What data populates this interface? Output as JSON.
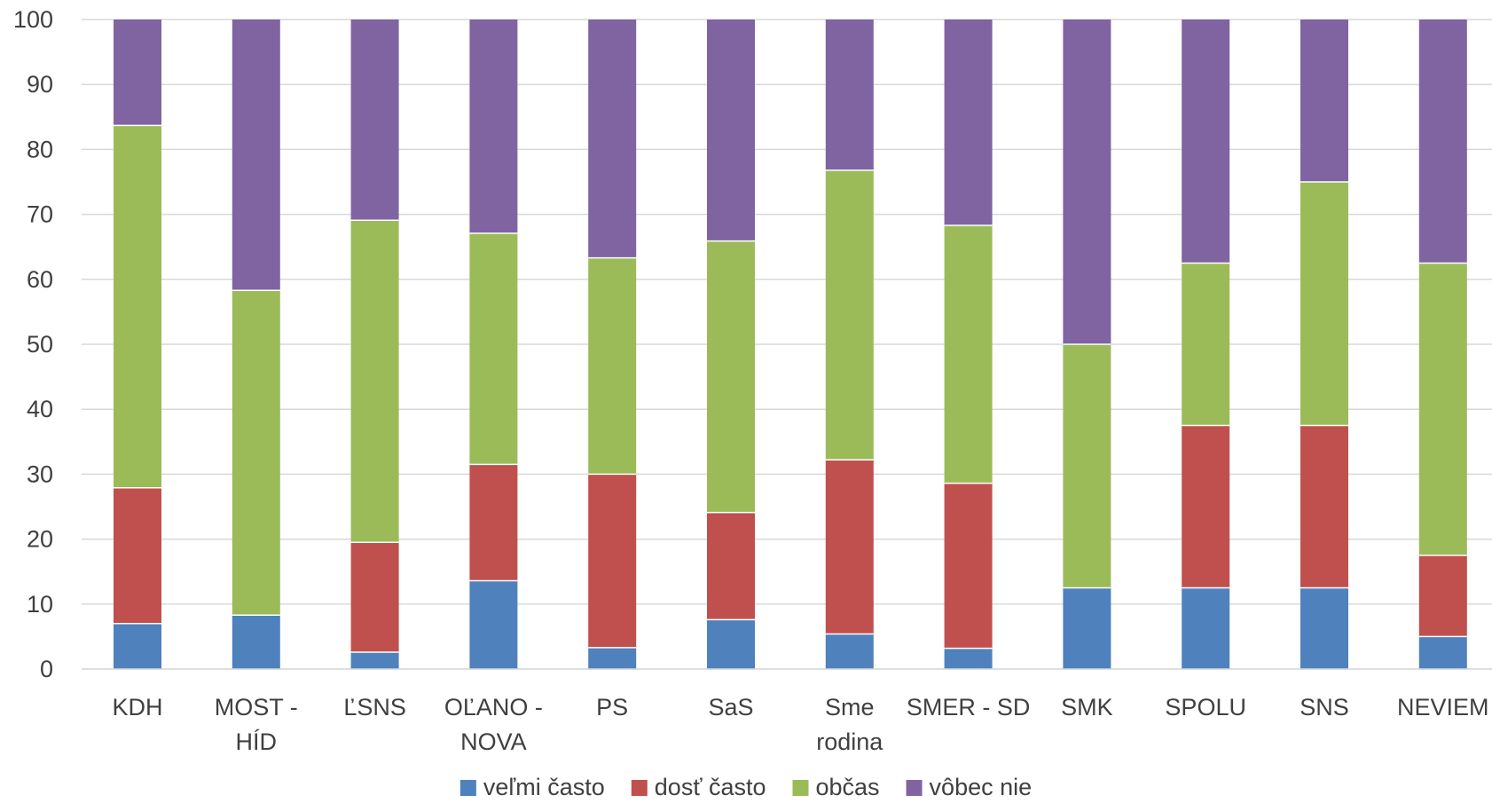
{
  "chart_data": {
    "type": "bar",
    "stacked": true,
    "title": "",
    "xlabel": "",
    "ylabel": "",
    "ylim": [
      0,
      100
    ],
    "yticks": [
      0,
      10,
      20,
      30,
      40,
      50,
      60,
      70,
      80,
      90,
      100
    ],
    "grid": "horizontal",
    "legend_position": "bottom",
    "categories": [
      [
        "KDH"
      ],
      [
        "MOST -",
        "HÍD"
      ],
      [
        "ĽSNS"
      ],
      [
        "OĽANO -",
        "NOVA"
      ],
      [
        "PS"
      ],
      [
        "SaS"
      ],
      [
        "Sme",
        "rodina"
      ],
      [
        "SMER - SD"
      ],
      [
        "SMK"
      ],
      [
        "SPOLU"
      ],
      [
        "SNS"
      ],
      [
        "NEVIEM"
      ]
    ],
    "series": [
      {
        "name": "veľmi často",
        "color": "#4F81BD",
        "values": [
          7,
          8.3,
          2.6,
          13.6,
          3.3,
          7.6,
          5.4,
          3.2,
          12.5,
          12.5,
          12.5,
          5.0
        ]
      },
      {
        "name": "dosť často",
        "color": "#C0504D",
        "values": [
          20.9,
          0,
          16.9,
          17.9,
          26.7,
          16.5,
          26.8,
          25.4,
          0,
          25.0,
          25.0,
          12.5
        ]
      },
      {
        "name": "občas",
        "color": "#9BBB59",
        "values": [
          55.8,
          50.0,
          49.6,
          35.6,
          33.3,
          41.8,
          44.6,
          39.7,
          37.5,
          25.0,
          37.5,
          45.0
        ]
      },
      {
        "name": "vôbec nie",
        "color": "#8064A2",
        "values": [
          16.3,
          41.7,
          30.9,
          32.9,
          36.7,
          34.1,
          23.2,
          31.7,
          50.0,
          37.5,
          25.0,
          37.5
        ]
      }
    ]
  }
}
